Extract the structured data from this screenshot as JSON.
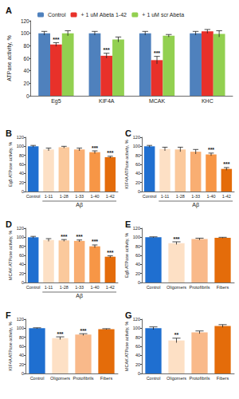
{
  "chart_data": [
    {
      "type": "bar",
      "title": "A",
      "y_label": "ATPase activity, %",
      "categories": [
        "Eg5",
        "KIF4A",
        "MCAK",
        "KHC"
      ],
      "series": [
        {
          "name": "Control",
          "color": "#4f81bd",
          "values": [
            100,
            100,
            100,
            100
          ],
          "errors": [
            3,
            3,
            3,
            3
          ],
          "annotations": [
            null,
            null,
            null,
            null
          ]
        },
        {
          "name": "+ 1 uM Abeta 1-42",
          "color": "#e8312a",
          "values": [
            82,
            64,
            57,
            103
          ],
          "errors": [
            3,
            4,
            6,
            3
          ],
          "annotations": [
            "***",
            "***",
            "***",
            null
          ]
        },
        {
          "name": "+ 1 uM scr Abeta",
          "color": "#92d050",
          "values": [
            100,
            90,
            96,
            99
          ],
          "errors": [
            4,
            4,
            2,
            5
          ],
          "annotations": [
            null,
            null,
            null,
            null
          ]
        }
      ],
      "ylim": [
        0,
        120
      ],
      "yticks": [
        0,
        20,
        40,
        60,
        80,
        100,
        120
      ],
      "legend": "top",
      "grid": false
    },
    {
      "type": "bar",
      "title": "B",
      "y_label": "Eg5 ATPase activity, %",
      "categories": [
        "Control",
        "1-11",
        "1-28",
        "1-33",
        "1-40",
        "1-42"
      ],
      "values": [
        100,
        93,
        98,
        93,
        87,
        76
      ],
      "errors": [
        2,
        3,
        2,
        3,
        3,
        2
      ],
      "colors": [
        "#1f6fd0",
        "#fde0c5",
        "#fbc99c",
        "#f9ae72",
        "#f79646",
        "#e46c0a"
      ],
      "annotations": [
        null,
        null,
        null,
        null,
        "***",
        "***"
      ],
      "group_label": {
        "text": "Aβ",
        "from": "1-11",
        "to": "1-42"
      },
      "ylim": [
        0,
        120
      ],
      "yticks": [
        0,
        20,
        40,
        60,
        80,
        100,
        120
      ],
      "grid": false
    },
    {
      "type": "bar",
      "title": "C",
      "y_label": "KIF4A ATPase activity, %",
      "categories": [
        "Control",
        "1-11",
        "1-28",
        "1-33",
        "1-40",
        "1-42"
      ],
      "values": [
        100,
        94,
        93,
        88,
        82,
        50
      ],
      "errors": [
        2,
        4,
        5,
        5,
        3,
        3
      ],
      "colors": [
        "#1f6fd0",
        "#fde0c5",
        "#fbc99c",
        "#f9ae72",
        "#f79646",
        "#e46c0a"
      ],
      "annotations": [
        null,
        null,
        null,
        null,
        "***",
        "***"
      ],
      "group_label": {
        "text": "Aβ",
        "from": "1-11",
        "to": "1-42"
      },
      "ylim": [
        0,
        120
      ],
      "yticks": [
        0,
        20,
        40,
        60,
        80,
        100,
        120
      ],
      "grid": false
    },
    {
      "type": "bar",
      "title": "D",
      "y_label": "MCAK ATPase activity, %",
      "categories": [
        "Control",
        "1-11",
        "1-28",
        "1-33",
        "1-40",
        "1-42"
      ],
      "values": [
        100,
        94,
        93,
        92,
        80,
        57
      ],
      "errors": [
        2,
        3,
        2,
        2,
        3,
        2
      ],
      "colors": [
        "#1f6fd0",
        "#fde0c5",
        "#fbc99c",
        "#f9ae72",
        "#f79646",
        "#e46c0a"
      ],
      "annotations": [
        null,
        null,
        "***",
        "***",
        "***",
        "***"
      ],
      "group_label": {
        "text": "Aβ",
        "from": "1-11",
        "to": "1-42"
      },
      "ylim": [
        0,
        120
      ],
      "yticks": [
        0,
        20,
        40,
        60,
        80,
        100,
        120
      ],
      "grid": false
    },
    {
      "type": "bar",
      "title": "E",
      "y_label": "Eg5 ATPase activity, %",
      "categories": [
        "Control",
        "Oligomers",
        "Protofibrils",
        "Fibers"
      ],
      "values": [
        100,
        87,
        96,
        99
      ],
      "errors": [
        1,
        3,
        2,
        1
      ],
      "colors": [
        "#1f6fd0",
        "#fde0c5",
        "#f9b98a",
        "#e46c0a"
      ],
      "annotations": [
        null,
        "***",
        null,
        null
      ],
      "ylim": [
        0,
        120
      ],
      "yticks": [
        0,
        20,
        40,
        60,
        80,
        100,
        120
      ],
      "grid": false
    },
    {
      "type": "bar",
      "title": "F",
      "y_label": "KIF4A ATPase activity, %",
      "categories": [
        "Control",
        "Oligomers",
        "Protofibrils",
        "Fibers"
      ],
      "values": [
        100,
        78,
        86,
        98
      ],
      "errors": [
        1,
        3,
        2,
        1
      ],
      "colors": [
        "#1f6fd0",
        "#fde0c5",
        "#f9b98a",
        "#e46c0a"
      ],
      "annotations": [
        null,
        "***",
        "***",
        null
      ],
      "ylim": [
        0,
        120
      ],
      "yticks": [
        0,
        20,
        40,
        60,
        80,
        100,
        120
      ],
      "grid": false
    },
    {
      "type": "bar",
      "title": "G",
      "y_label": "MCAK ATPase activity, %",
      "categories": [
        "Control",
        "Oligomers",
        "Protofibrils",
        "Fibers"
      ],
      "values": [
        100,
        73,
        91,
        105
      ],
      "errors": [
        3,
        5,
        3,
        3
      ],
      "colors": [
        "#1f6fd0",
        "#fde0c5",
        "#f9b98a",
        "#e46c0a"
      ],
      "annotations": [
        null,
        "**",
        null,
        null
      ],
      "ylim": [
        0,
        120
      ],
      "yticks": [
        0,
        20,
        40,
        60,
        80,
        100,
        120
      ],
      "grid": false
    }
  ]
}
